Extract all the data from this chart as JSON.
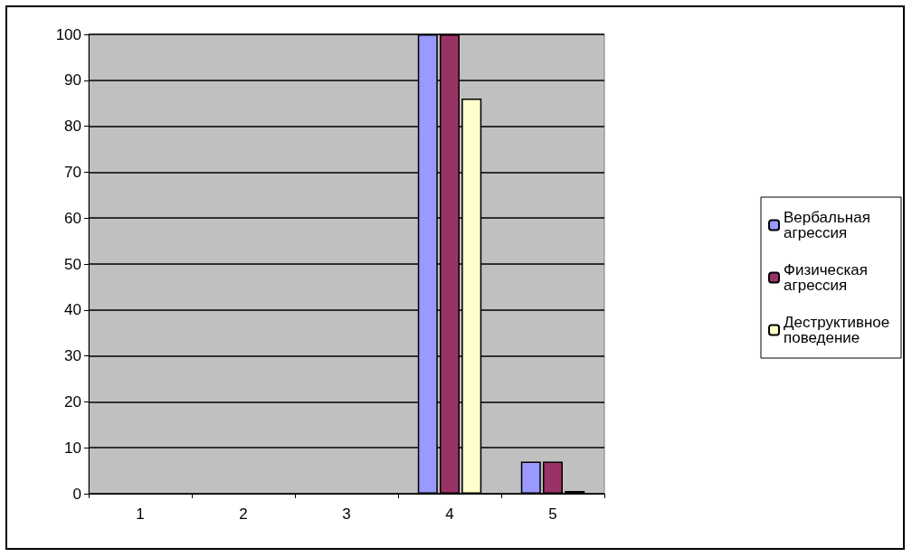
{
  "chart_data": {
    "type": "bar",
    "categories": [
      "1",
      "2",
      "3",
      "4",
      "5"
    ],
    "series": [
      {
        "name": "Вербальная агрессия",
        "color": "#9999ff",
        "values": [
          null,
          null,
          null,
          100,
          7
        ]
      },
      {
        "name": "Физическая агрессия",
        "color": "#993366",
        "values": [
          null,
          null,
          null,
          100,
          7
        ]
      },
      {
        "name": "Деструктивное поведение",
        "color": "#ffffcc",
        "values": [
          null,
          null,
          null,
          86,
          0
        ]
      }
    ],
    "ylim": [
      0,
      100
    ],
    "yticks": [
      0,
      10,
      20,
      30,
      40,
      50,
      60,
      70,
      80,
      90,
      100
    ],
    "grid": "y",
    "legend": "right"
  }
}
